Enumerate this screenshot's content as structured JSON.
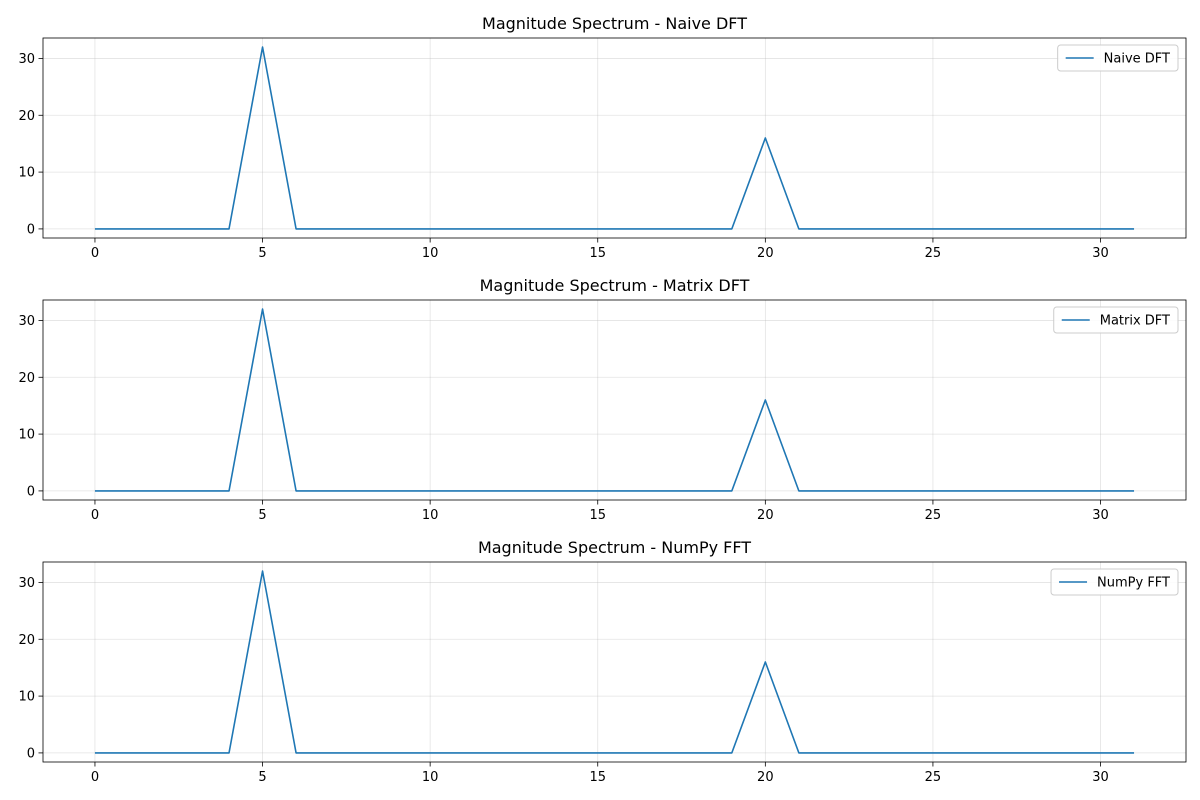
{
  "chart_data": [
    {
      "type": "line",
      "title": "Magnitude Spectrum - Naive DFT",
      "xlabel": "",
      "ylabel": "",
      "x": [
        0,
        1,
        2,
        3,
        4,
        5,
        6,
        7,
        8,
        9,
        10,
        11,
        12,
        13,
        14,
        15,
        16,
        17,
        18,
        19,
        20,
        21,
        22,
        23,
        24,
        25,
        26,
        27,
        28,
        29,
        30,
        31
      ],
      "series": [
        {
          "name": "Naive DFT",
          "color": "#1f77b4",
          "values": [
            0,
            0,
            0,
            0,
            0,
            32,
            0,
            0,
            0,
            0,
            0,
            0,
            0,
            0,
            0,
            0,
            0,
            0,
            0,
            0,
            16,
            0,
            0,
            0,
            0,
            0,
            0,
            0,
            0,
            0,
            0,
            0
          ]
        }
      ],
      "xlim": [
        -1.55,
        32.55
      ],
      "ylim": [
        -1.6,
        33.6
      ],
      "xticks": [
        0,
        5,
        10,
        15,
        20,
        25,
        30
      ],
      "yticks": [
        0,
        10,
        20,
        30
      ],
      "grid": true,
      "legend_position": "upper right"
    },
    {
      "type": "line",
      "title": "Magnitude Spectrum - Matrix DFT",
      "xlabel": "",
      "ylabel": "",
      "x": [
        0,
        1,
        2,
        3,
        4,
        5,
        6,
        7,
        8,
        9,
        10,
        11,
        12,
        13,
        14,
        15,
        16,
        17,
        18,
        19,
        20,
        21,
        22,
        23,
        24,
        25,
        26,
        27,
        28,
        29,
        30,
        31
      ],
      "series": [
        {
          "name": "Matrix DFT",
          "color": "#1f77b4",
          "values": [
            0,
            0,
            0,
            0,
            0,
            32,
            0,
            0,
            0,
            0,
            0,
            0,
            0,
            0,
            0,
            0,
            0,
            0,
            0,
            0,
            16,
            0,
            0,
            0,
            0,
            0,
            0,
            0,
            0,
            0,
            0,
            0
          ]
        }
      ],
      "xlim": [
        -1.55,
        32.55
      ],
      "ylim": [
        -1.6,
        33.6
      ],
      "xticks": [
        0,
        5,
        10,
        15,
        20,
        25,
        30
      ],
      "yticks": [
        0,
        10,
        20,
        30
      ],
      "grid": true,
      "legend_position": "upper right"
    },
    {
      "type": "line",
      "title": "Magnitude Spectrum - NumPy FFT",
      "xlabel": "",
      "ylabel": "",
      "x": [
        0,
        1,
        2,
        3,
        4,
        5,
        6,
        7,
        8,
        9,
        10,
        11,
        12,
        13,
        14,
        15,
        16,
        17,
        18,
        19,
        20,
        21,
        22,
        23,
        24,
        25,
        26,
        27,
        28,
        29,
        30,
        31
      ],
      "series": [
        {
          "name": "NumPy FFT",
          "color": "#1f77b4",
          "values": [
            0,
            0,
            0,
            0,
            0,
            32,
            0,
            0,
            0,
            0,
            0,
            0,
            0,
            0,
            0,
            0,
            0,
            0,
            0,
            0,
            16,
            0,
            0,
            0,
            0,
            0,
            0,
            0,
            0,
            0,
            0,
            0
          ]
        }
      ],
      "xlim": [
        -1.55,
        32.55
      ],
      "ylim": [
        -1.6,
        33.6
      ],
      "xticks": [
        0,
        5,
        10,
        15,
        20,
        25,
        30
      ],
      "yticks": [
        0,
        10,
        20,
        30
      ],
      "grid": true,
      "legend_position": "upper right"
    }
  ]
}
